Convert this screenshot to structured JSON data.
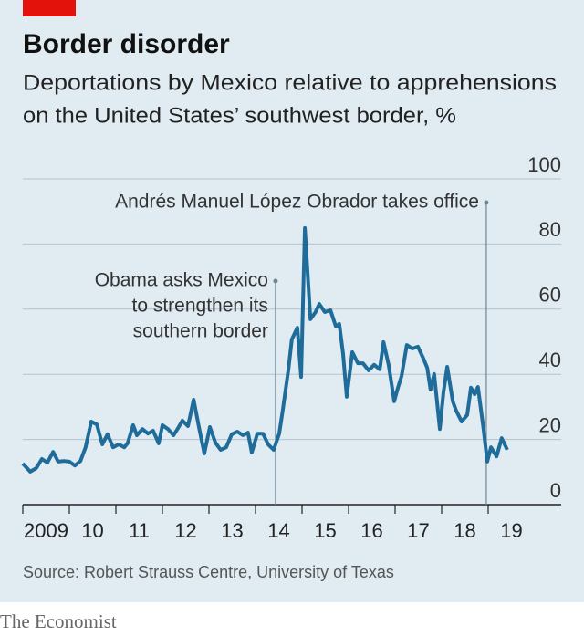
{
  "chart_data": {
    "type": "line",
    "title": "Border disorder",
    "subtitle": [
      "Deportations by Mexico relative to apprehensions",
      "on the United States’ southwest border, %"
    ],
    "source": "Source: Robert Strauss Centre, University of Texas",
    "brand": "The Economist",
    "color": "#1f6c9a",
    "x": [
      2009.0,
      2009.16,
      2009.29,
      2009.41,
      2009.53,
      2009.65,
      2009.76,
      2009.88,
      2010.0,
      2010.12,
      2010.24,
      2010.35,
      2010.47,
      2010.59,
      2010.71,
      2010.82,
      2010.94,
      2011.06,
      2011.18,
      2011.25,
      2011.37,
      2011.45,
      2011.57,
      2011.69,
      2011.8,
      2011.92,
      2012.0,
      2012.12,
      2012.24,
      2012.35,
      2012.43,
      2012.55,
      2012.67,
      2012.78,
      2012.9,
      2013.02,
      2013.14,
      2013.25,
      2013.37,
      2013.49,
      2013.61,
      2013.73,
      2013.84,
      2013.92,
      2014.04,
      2014.16,
      2014.27,
      2014.39,
      2014.51,
      2014.59,
      2014.71,
      2014.78,
      2014.9,
      2014.98,
      2015.06,
      2015.18,
      2015.29,
      2015.37,
      2015.49,
      2015.61,
      2015.73,
      2015.8,
      2015.88,
      2015.96,
      2016.08,
      2016.2,
      2016.31,
      2016.43,
      2016.55,
      2016.67,
      2016.75,
      2016.86,
      2016.98,
      2017.06,
      2017.14,
      2017.25,
      2017.37,
      2017.49,
      2017.61,
      2017.69,
      2017.76,
      2017.84,
      2017.96,
      2018.04,
      2018.12,
      2018.24,
      2018.31,
      2018.43,
      2018.55,
      2018.63,
      2018.71,
      2018.78,
      2018.9,
      2018.98,
      2019.06,
      2019.18,
      2019.29,
      2019.41
    ],
    "values": [
      12.6,
      10.1,
      11.2,
      14.0,
      12.9,
      16.2,
      13.2,
      13.4,
      13.2,
      12.0,
      13.4,
      17.6,
      25.5,
      24.6,
      18.5,
      21.6,
      17.6,
      18.5,
      17.6,
      18.8,
      24.4,
      21.3,
      23.2,
      21.8,
      22.7,
      18.8,
      24.4,
      23.2,
      21.3,
      23.8,
      25.8,
      24.1,
      32.2,
      24.1,
      15.7,
      23.8,
      19.0,
      16.8,
      17.6,
      21.6,
      22.4,
      21.3,
      22.1,
      16.0,
      21.8,
      21.8,
      18.5,
      16.8,
      21.8,
      29.4,
      41.7,
      50.7,
      54.3,
      39.2,
      84.9,
      56.9,
      59.1,
      61.6,
      59.1,
      59.7,
      54.6,
      55.5,
      46.5,
      33.1,
      46.8,
      43.4,
      43.4,
      41.2,
      42.9,
      41.5,
      49.9,
      42.9,
      31.7,
      35.9,
      39.5,
      49.0,
      47.9,
      48.5,
      44.8,
      42.0,
      35.3,
      40.1,
      23.2,
      34.5,
      42.3,
      31.7,
      28.9,
      25.5,
      27.5,
      35.9,
      33.9,
      36.1,
      23.2,
      13.2,
      17.6,
      14.8,
      20.4,
      16.8
    ],
    "xlim": [
      2009,
      2020.5
    ],
    "xticks": [
      {
        "value": 2009,
        "label": "2009"
      },
      {
        "value": 2010,
        "label": "10"
      },
      {
        "value": 2011,
        "label": "11"
      },
      {
        "value": 2012,
        "label": "12"
      },
      {
        "value": 2013,
        "label": "13"
      },
      {
        "value": 2014,
        "label": "14"
      },
      {
        "value": 2015,
        "label": "15"
      },
      {
        "value": 2016,
        "label": "16"
      },
      {
        "value": 2017,
        "label": "17"
      },
      {
        "value": 2018,
        "label": "18"
      },
      {
        "value": 2019,
        "label": "19"
      }
    ],
    "ylim": [
      0,
      100
    ],
    "yticks": [
      0,
      20,
      40,
      60,
      80,
      100
    ],
    "grid": true,
    "annotations": [
      {
        "x": 2014.43,
        "text": [
          "Obama asks Mexico",
          "to strengthen its",
          "southern border"
        ]
      },
      {
        "x": 2018.96,
        "text": [
          "Andrés Manuel López Obrador takes office"
        ]
      }
    ]
  }
}
